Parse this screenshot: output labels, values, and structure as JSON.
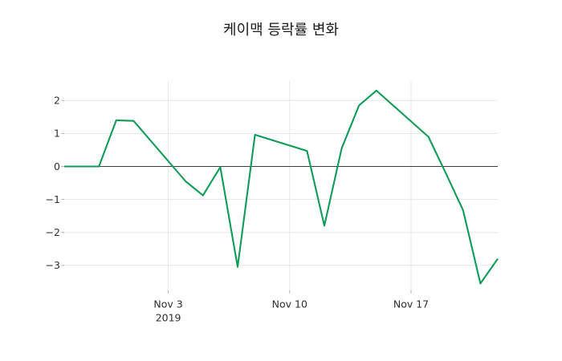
{
  "chart_data": {
    "type": "line",
    "title": "케이맥 등락률 변화",
    "dates": [
      "2019-10-28",
      "2019-10-29",
      "2019-10-30",
      "2019-10-31",
      "2019-11-01",
      "2019-11-04",
      "2019-11-05",
      "2019-11-06",
      "2019-11-07",
      "2019-11-08",
      "2019-11-11",
      "2019-11-12",
      "2019-11-13",
      "2019-11-14",
      "2019-11-15",
      "2019-11-18",
      "2019-11-19",
      "2019-11-20",
      "2019-11-21",
      "2019-11-22"
    ],
    "values": [
      0.0,
      0.0,
      0.0,
      1.4,
      1.38,
      -0.45,
      -0.88,
      -0.02,
      -3.05,
      0.96,
      0.47,
      -1.8,
      0.55,
      1.85,
      2.3,
      0.9,
      -0.2,
      -1.33,
      -3.55,
      -2.8
    ],
    "xlim": [
      "2019-10-28",
      "2019-11-22"
    ],
    "ylim": [
      -3.76,
      2.59
    ],
    "xticks": [
      {
        "date": "2019-11-03",
        "label": "Nov 3",
        "sublabel": "2019"
      },
      {
        "date": "2019-11-10",
        "label": "Nov 10"
      },
      {
        "date": "2019-11-17",
        "label": "Nov 17"
      }
    ],
    "yticks": [
      2,
      1,
      0,
      -1,
      -2,
      -3
    ],
    "ytick_labels": [
      "2",
      "1",
      "0",
      "−1",
      "−2",
      "−3"
    ],
    "grid": true,
    "zero_line": true,
    "legend": "none",
    "colors": {
      "line": "#0f9b59",
      "grid": "#e7e7e7",
      "zero_line": "#3d3d3d",
      "tick": "#aeaeae",
      "text": "#2e2e2e",
      "background": "#ffffff"
    }
  }
}
